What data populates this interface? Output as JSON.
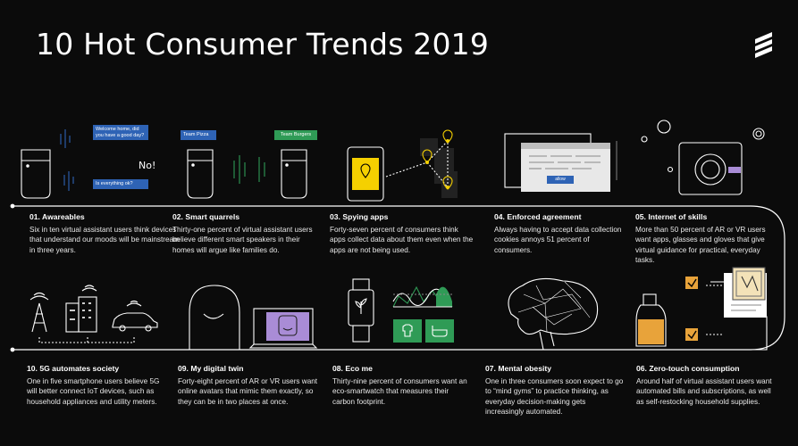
{
  "title": "10 Hot Consumer Trends 2019",
  "logo_icon": "ericsson-logo-icon",
  "colors": {
    "background": "#0b0b0b",
    "accent_blue": "#2e63b5",
    "accent_green": "#2f9b56",
    "accent_yellow": "#f5d000",
    "accent_purple": "#a98cd6",
    "accent_orange": "#e8a33a"
  },
  "top_row": [
    {
      "heading": "01. Awareables",
      "body": "Six in ten virtual assistant users think devices that understand our moods will be mainstream in three years."
    },
    {
      "heading": "02. Smart quarrels",
      "body": "Thirty-one percent of virtual assistant users believe different smart speakers in their homes will argue like families do."
    },
    {
      "heading": "03. Spying apps",
      "body": "Forty-seven percent of consumers think apps collect data about them even when the apps are not being used."
    },
    {
      "heading": "04. Enforced agreement",
      "body": "Always having to accept data collection cookies annoys 51 percent of consumers."
    },
    {
      "heading": "05. Internet of skills",
      "body": "More than 50 percent of AR or VR users want apps, glasses and gloves that give virtual guidance for practical, everyday tasks."
    }
  ],
  "bottom_row": [
    {
      "heading": "10. 5G automates society",
      "body": "One in five smartphone users believe 5G will better connect IoT devices, such as household appliances and utility meters."
    },
    {
      "heading": "09. My digital twin",
      "body": "Forty-eight percent of AR or VR users want online avatars that mimic them exactly, so they can be in two places at once."
    },
    {
      "heading": "08. Eco me",
      "body": "Thirty-nine percent of consumers want an eco-smartwatch that measures their carbon footprint."
    },
    {
      "heading": "07. Mental obesity",
      "body": "One in three consumers soon expect to go to “mind gyms” to practice thinking, as everyday decision-making gets increasingly automated."
    },
    {
      "heading": "06. Zero-touch consumption",
      "body": "Around half of virtual assistant users want automated bills and subscriptions, as well as self-restocking household supplies."
    }
  ],
  "bubbles": {
    "welcome": "Welcome home, did you have a good day?",
    "no": "No!",
    "okay": "Is everything ok?",
    "pizza": "Team Pizza",
    "burgers": "Team Burgers",
    "dialog_button": "allow"
  },
  "icons": {
    "awareables": "smart-speaker-icon",
    "quarrels": "arguing-speakers-icon",
    "spying": "phone-location-icon",
    "agreement": "cookie-consent-dialog-icon",
    "skills": "ar-guidance-icon",
    "automates": "5g-city-icon",
    "twin": "avatar-video-icon",
    "eco": "eco-smartwatch-icon",
    "mental": "brain-icon",
    "zero_touch": "auto-restock-icon"
  }
}
